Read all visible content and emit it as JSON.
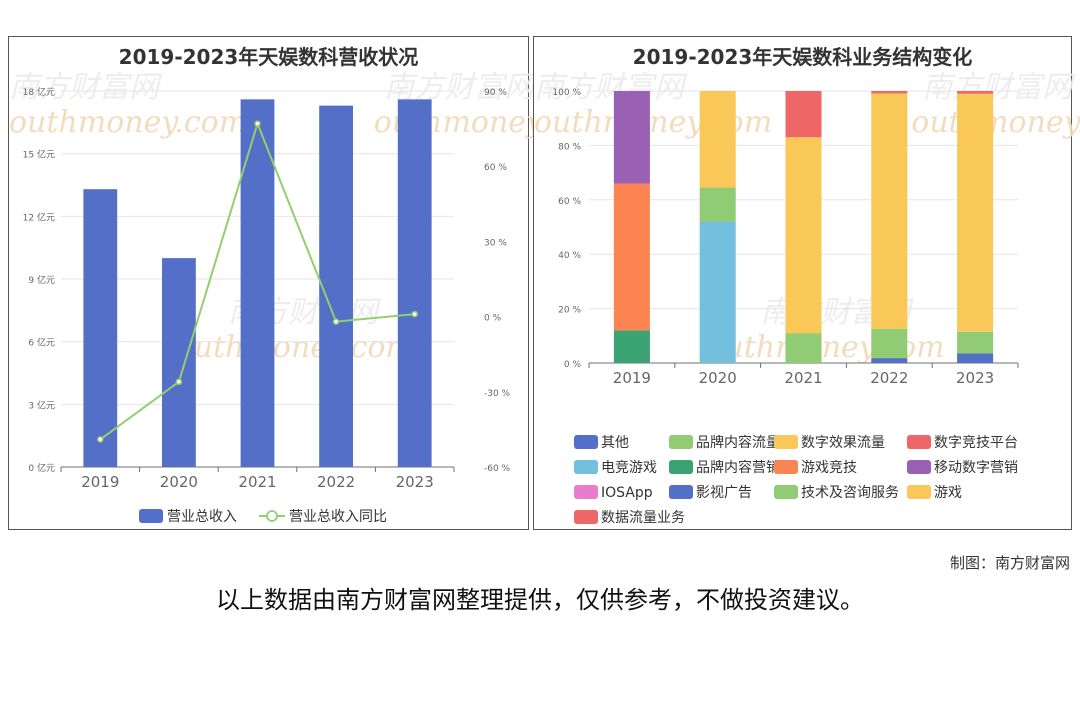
{
  "left_chart": {
    "title": "2019-2023年天娱数科营收状况",
    "chart_data": {
      "type": "bar",
      "categories": [
        "2019",
        "2020",
        "2021",
        "2022",
        "2023"
      ],
      "series": [
        {
          "name": "营业总收入",
          "type": "bar",
          "axis": "left",
          "values": [
            13.3,
            10.0,
            17.6,
            17.3,
            17.6
          ],
          "color": "#536fc8"
        },
        {
          "name": "营业总收入同比",
          "type": "line",
          "axis": "right",
          "values": [
            -49,
            -26,
            77,
            -2,
            1
          ],
          "color": "#92cf6e"
        }
      ],
      "y_left": {
        "min": 0,
        "max": 18,
        "ticks": [
          0,
          3,
          6,
          9,
          12,
          15,
          18
        ],
        "tick_labels": [
          "0 亿元",
          "3 亿元",
          "6 亿元",
          "9 亿元",
          "12 亿元",
          "15 亿元",
          "18 亿元"
        ]
      },
      "y_right": {
        "min": -60,
        "max": 90,
        "ticks": [
          -60,
          -30,
          0,
          30,
          60,
          90
        ],
        "tick_labels": [
          "-60 %",
          "-30 %",
          "0 %",
          "30 %",
          "60 %",
          "90 %"
        ]
      },
      "legend_position": "bottom",
      "grid": true
    }
  },
  "right_chart": {
    "title": "2019-2023年天娱数科业务结构变化",
    "chart_data": {
      "type": "bar",
      "stacked": true,
      "categories": [
        "2019",
        "2020",
        "2021",
        "2022",
        "2023"
      ],
      "y": {
        "min": 0,
        "max": 100,
        "ticks": [
          0,
          20,
          40,
          60,
          80,
          100
        ],
        "tick_labels": [
          "0 %",
          "20 %",
          "40 %",
          "60 %",
          "80 %",
          "100 %"
        ]
      },
      "series": [
        {
          "name": "其他",
          "color": "#5470c6",
          "values": [
            0,
            0,
            0,
            1.8,
            3.5
          ]
        },
        {
          "name": "品牌内容流量",
          "color": "#91cc75",
          "values": [
            0,
            0,
            0,
            10.8,
            0
          ]
        },
        {
          "name": "数字效果流量",
          "color": "#fac858",
          "values": [
            0,
            0,
            0,
            86.5,
            0
          ]
        },
        {
          "name": "数字竞技平台",
          "color": "#ee6666",
          "values": [
            0,
            0,
            0,
            0.9,
            0
          ]
        },
        {
          "name": "电竞游戏",
          "color": "#73c0de",
          "values": [
            0,
            52,
            0,
            0,
            0
          ]
        },
        {
          "name": "品牌内容营销",
          "color": "#3ba272",
          "values": [
            12,
            0,
            0,
            0,
            0
          ]
        },
        {
          "name": "游戏竞技",
          "color": "#fc8452",
          "values": [
            54,
            0,
            0,
            0,
            0
          ]
        },
        {
          "name": "移动数字营销",
          "color": "#9a60b4",
          "values": [
            34,
            0,
            0,
            0,
            0
          ]
        },
        {
          "name": "IOSApp",
          "color": "#ea7ccc",
          "values": [
            0,
            0,
            0,
            0,
            0
          ]
        },
        {
          "name": "影视广告",
          "color": "#5470c6",
          "values": [
            0,
            0,
            0,
            0,
            0
          ]
        },
        {
          "name": "技术及咨询服务",
          "color": "#91cc75",
          "values": [
            0,
            12.5,
            11,
            0,
            8
          ]
        },
        {
          "name": "游戏",
          "color": "#fac858",
          "values": [
            0,
            35.5,
            72,
            0,
            87.5
          ]
        },
        {
          "name": "数据流量业务",
          "color": "#ee6666",
          "values": [
            0,
            0,
            17,
            0,
            1
          ]
        }
      ],
      "legend_position": "bottom",
      "grid": true
    }
  },
  "credit": "制图：南方财富网",
  "disclaimer": "以上数据由南方财富网整理提供，仅供参考，不做投资建议。",
  "watermark": {
    "cn": "南方财富网",
    "en": "outhmoney.com"
  }
}
